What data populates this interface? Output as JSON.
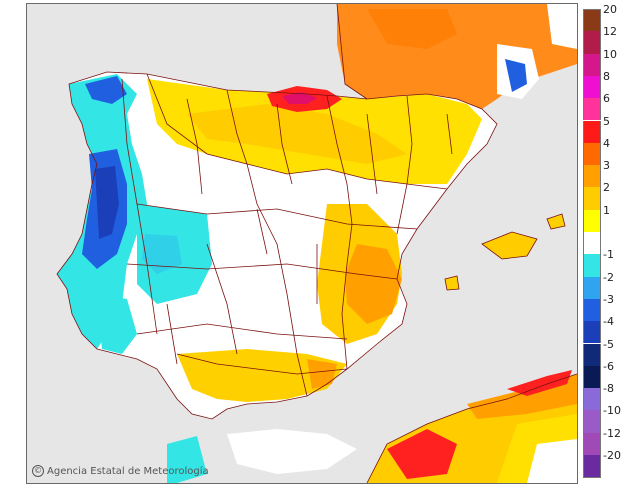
{
  "credit": {
    "symbol": "©",
    "text": "Agencia Estatal de Meteorología"
  },
  "legend": {
    "entries": [
      {
        "label": "20",
        "color": "#8b3a18"
      },
      {
        "label": "12",
        "color": "#b21c4a"
      },
      {
        "label": "10",
        "color": "#d5178c"
      },
      {
        "label": "8",
        "color": "#ef0fd0"
      },
      {
        "label": "6",
        "color": "#ff3399"
      },
      {
        "label": "5",
        "color": "#ff1a1a"
      },
      {
        "label": "4",
        "color": "#ff6a00"
      },
      {
        "label": "3",
        "color": "#ffa000"
      },
      {
        "label": "2",
        "color": "#ffcc00"
      },
      {
        "label": "1",
        "color": "#ffff00"
      },
      {
        "label": "",
        "color": "#ffffff"
      },
      {
        "label": "-1",
        "color": "#33e5e5"
      },
      {
        "label": "-2",
        "color": "#2fa5f0"
      },
      {
        "label": "-3",
        "color": "#2060e0"
      },
      {
        "label": "-4",
        "color": "#1a3fb8"
      },
      {
        "label": "-5",
        "color": "#102a7a"
      },
      {
        "label": "-6",
        "color": "#0a1a55"
      },
      {
        "label": "-8",
        "color": "#8a6ad8"
      },
      {
        "label": "-10",
        "color": "#9a5ac8"
      },
      {
        "label": "-12",
        "color": "#a04ab8"
      },
      {
        "label": "-20",
        "color": "#6a2aa0"
      }
    ]
  }
}
